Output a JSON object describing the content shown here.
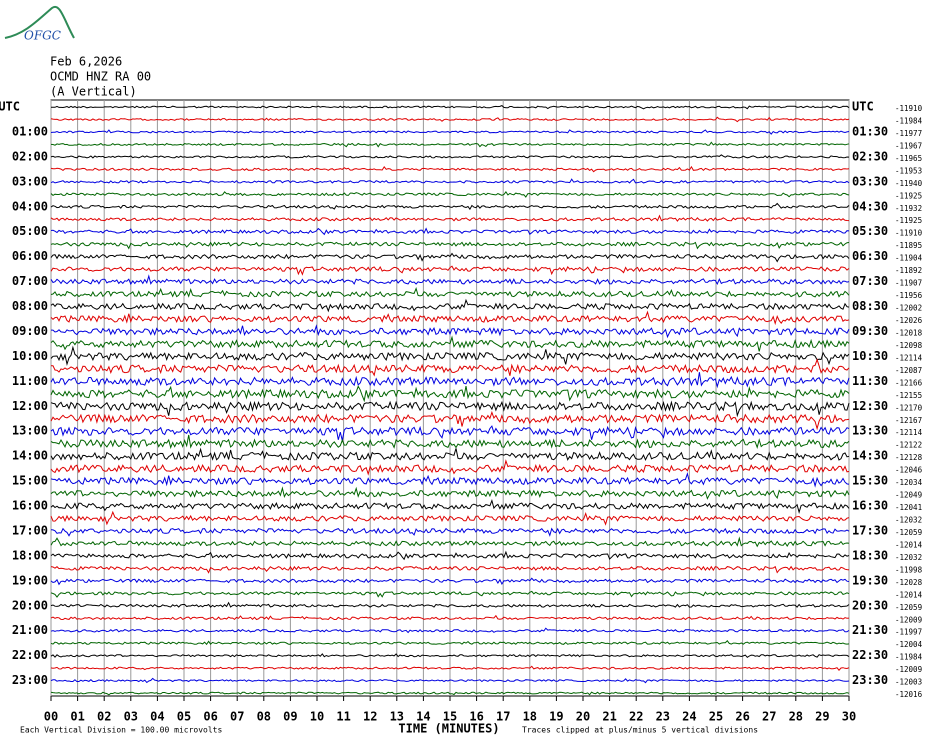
{
  "logo": "OFGC",
  "chart_data": {
    "type": "helicorder",
    "date": "Feb 6,2026",
    "station": "OCMD HNZ RA 00",
    "component": "(A Vertical)",
    "xlabel": "TIME (MINUTES)",
    "scale_note": "Each Vertical Division =  100.00 microvolts",
    "clip_note": "Traces clipped at plus/minus 5 vertical divisions",
    "xlim": [
      0,
      30
    ],
    "xticks": [
      {
        "value": 0,
        "label": "00"
      },
      {
        "value": 1,
        "label": "01"
      },
      {
        "value": 2,
        "label": "02"
      },
      {
        "value": 3,
        "label": "03"
      },
      {
        "value": 4,
        "label": "04"
      },
      {
        "value": 5,
        "label": "05"
      },
      {
        "value": 6,
        "label": "06"
      },
      {
        "value": 7,
        "label": "07"
      },
      {
        "value": 8,
        "label": "08"
      },
      {
        "value": 9,
        "label": "09"
      },
      10,
      11,
      12,
      13,
      14,
      15,
      16,
      17,
      18,
      19,
      20,
      21,
      22,
      23,
      24,
      25,
      26,
      27,
      28,
      29,
      30
    ],
    "grid": true,
    "trace_colors": [
      "#000000",
      "#e00000",
      "#0000e0",
      "#006400"
    ],
    "left_labels": [
      "UTC",
      "01:00",
      "02:00",
      "03:00",
      "04:00",
      "05:00",
      "06:00",
      "07:00",
      "08:00",
      "09:00",
      "10:00",
      "11:00",
      "12:00",
      "13:00",
      "14:00",
      "15:00",
      "16:00",
      "17:00",
      "18:00",
      "19:00",
      "20:00",
      "21:00",
      "22:00",
      "23:00"
    ],
    "right_labels": [
      "UTC",
      "01:30",
      "02:30",
      "03:30",
      "04:30",
      "05:30",
      "06:30",
      "07:30",
      "08:30",
      "09:30",
      "10:30",
      "11:30",
      "12:30",
      "13:30",
      "14:30",
      "15:30",
      "16:30",
      "17:30",
      "18:30",
      "19:30",
      "20:30",
      "21:30",
      "22:30",
      "23:30"
    ],
    "trace_offsets": [
      -11910,
      -11984,
      -11977,
      -11967,
      -11965,
      -11953,
      -11940,
      -11925,
      -11932,
      -11925,
      -11910,
      -11895,
      -11904,
      -11892,
      -11907,
      -11956,
      -12002,
      -12026,
      -12018,
      -12098,
      -12114,
      -12087,
      -12166,
      -12155,
      -12170,
      -12167,
      -12114,
      -12122,
      -12128,
      -12046,
      -12034,
      -12049,
      -12041,
      -12032,
      -12059,
      -12014,
      -12032,
      -11998,
      -12028,
      -12014,
      -12059,
      -12009,
      -11997,
      -12004,
      -11984,
      -12009,
      -12003,
      -12016
    ]
  }
}
